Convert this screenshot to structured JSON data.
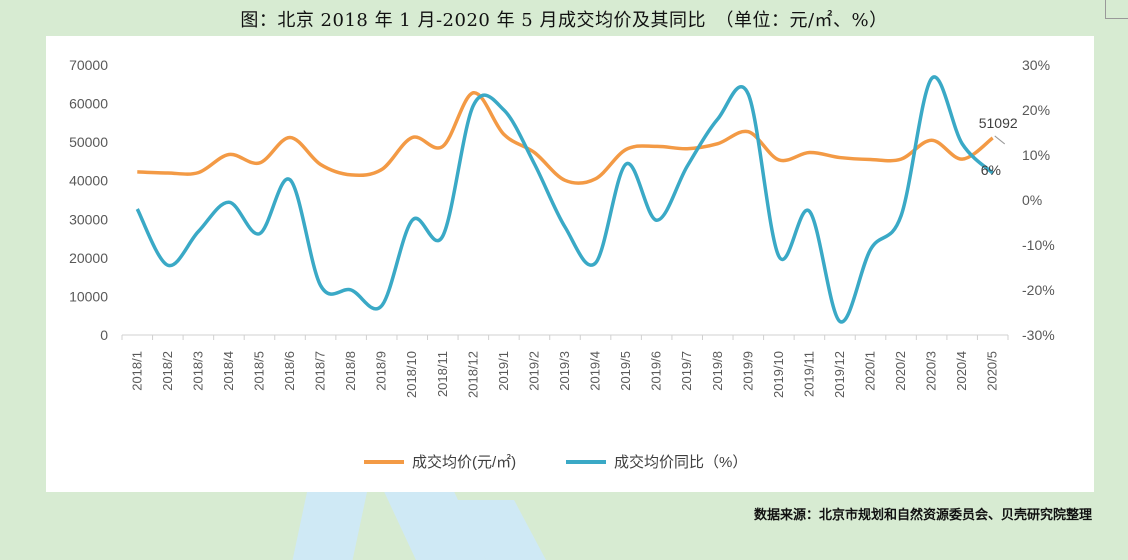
{
  "title": "图：北京 2018 年 1 月-2020 年 5 月成交均价及其同比　（单位：元/㎡、%）",
  "source": "数据来源：北京市规划和自然资源委员会、贝壳研究院整理",
  "colors": {
    "price": "#f39a45",
    "yoy": "#3aa9c6",
    "axis": "#d0d0d0"
  },
  "chart_data": {
    "type": "line",
    "categories": [
      "2018/1",
      "2018/2",
      "2018/3",
      "2018/4",
      "2018/5",
      "2018/6",
      "2018/7",
      "2018/8",
      "2018/9",
      "2018/10",
      "2018/11",
      "2018/12",
      "2019/1",
      "2019/2",
      "2019/3",
      "2019/4",
      "2019/5",
      "2019/6",
      "2019/7",
      "2019/8",
      "2019/9",
      "2019/10",
      "2019/11",
      "2019/12",
      "2020/1",
      "2020/2",
      "2020/3",
      "2020/4",
      "2020/5"
    ],
    "y_left": {
      "ticks": [
        "0",
        "10000",
        "20000",
        "30000",
        "40000",
        "50000",
        "60000",
        "70000"
      ],
      "lim": [
        0,
        70000
      ]
    },
    "y_right": {
      "ticks": [
        "-30%",
        "-20%",
        "-10%",
        "0%",
        "10%",
        "20%",
        "30%"
      ],
      "lim": [
        -30,
        30
      ]
    },
    "series": [
      {
        "name": "成交均价(元/㎡)",
        "axis": "left",
        "values": [
          42300,
          42000,
          42100,
          46800,
          44600,
          51200,
          44200,
          41500,
          42900,
          51200,
          48900,
          62800,
          52000,
          47300,
          40100,
          40500,
          48100,
          48900,
          48300,
          49600,
          52700,
          45400,
          47300,
          46000,
          45500,
          45600,
          50500,
          45600,
          51092
        ]
      },
      {
        "name": "成交均价同比（%）",
        "axis": "right",
        "values": [
          -2,
          -14.5,
          -7,
          -0.5,
          -7.5,
          4.5,
          -19,
          -20,
          -23.5,
          -4.5,
          -8,
          21,
          20,
          8,
          -6,
          -14,
          8,
          -4.5,
          7.5,
          18,
          23.5,
          -12.5,
          -2.5,
          -27,
          -11,
          -3.5,
          27,
          12.5,
          6
        ]
      }
    ],
    "data_labels": {
      "price_last": "51092",
      "yoy_last": "6%"
    },
    "legend_position": "bottom-center",
    "grid": false
  }
}
